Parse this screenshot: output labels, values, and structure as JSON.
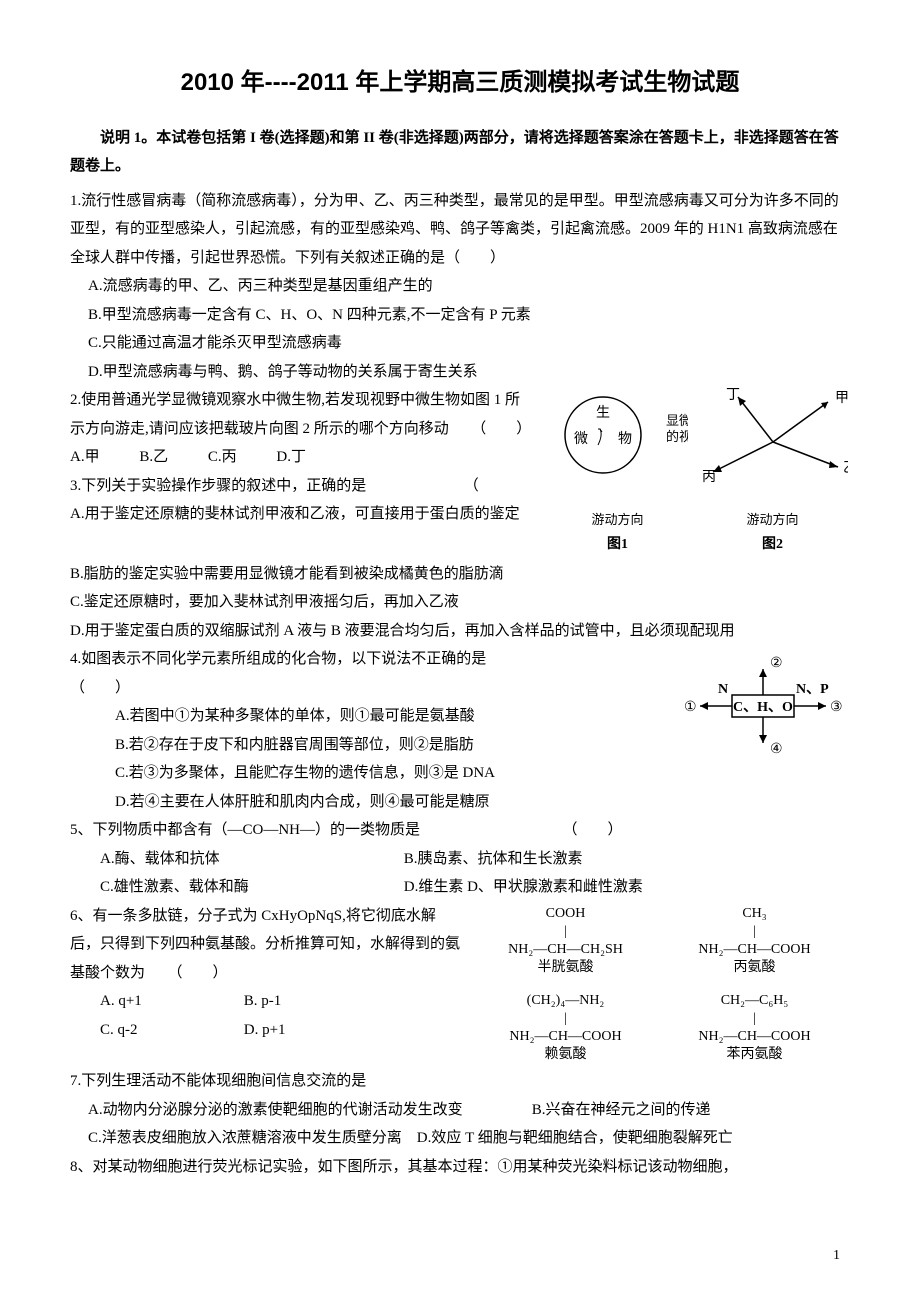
{
  "title": "2010 年----2011 年上学期高三质测模拟考试生物试题",
  "instructions": "说明 1。本试卷包括第 I 卷(选择题)和第 II 卷(非选择题)两部分，请将选择题答案涂在答题卡上，非选择题答在答题卷上。",
  "q1": {
    "stem": "1.流行性感冒病毒（简称流感病毒），分为甲、乙、丙三种类型，最常见的是甲型。甲型流感病毒又可分为许多不同的亚型，有的亚型感染人，引起流感，有的亚型感染鸡、鸭、鸽子等禽类，引起禽流感。2009 年的 H1N1 高致病流感在全球人群中传播，引起世界恐慌。下列有关叙述正确的是（　　）",
    "A": "A.流感病毒的甲、乙、丙三种类型是基因重组产生的",
    "B": "B.甲型流感病毒一定含有 C、H、O、N 四种元素,不一定含有 P 元素",
    "C": "C.只能通过高温才能杀灭甲型流感病毒",
    "D": "D.甲型流感病毒与鸭、鹅、鸽子等动物的关系属于寄生关系"
  },
  "q2": {
    "stem": "2.使用普通光学显微镜观察水中微生物,若发现视野中微生物如图 1 所示方向游走,请问应该把载玻片向图 2 所示的哪个方向移动　　（　　）",
    "A": "A.甲",
    "B": "B.乙",
    "C": "C.丙",
    "D": "D.丁",
    "fig1_chars": [
      "微",
      "生",
      "物"
    ],
    "fig1_sub": "游动方向",
    "fig1_cap": "图1",
    "fig1_side": "显微镜的视野",
    "fig2_labels": [
      "甲",
      "乙",
      "丙",
      "丁"
    ],
    "fig2_sub": "游动方向",
    "fig2_cap": "图2"
  },
  "q3": {
    "stem": "3.下列关于实验操作步骤的叙述中，正确的是　　　　　　　（",
    "A": "A.用于鉴定还原糖的斐林试剂甲液和乙液，可直接用于蛋白质的鉴定",
    "B": "B.脂肪的鉴定实验中需要用显微镜才能看到被染成橘黄色的脂肪滴",
    "C": "C.鉴定还原糖时，要加入斐林试剂甲液摇匀后，再加入乙液",
    "D": "D.用于鉴定蛋白质的双缩脲试剂 A 液与 B 液要混合均匀后，再加入含样品的试管中，且必须现配现用"
  },
  "q4": {
    "stem": "4.如图表示不同化学元素所组成的化合物，以下说法不正确的是　　　　　　　　　（　　）",
    "A": "A.若图中①为某种多聚体的单体，则①最可能是氨基酸",
    "B": "B.若②存在于皮下和内脏器官周围等部位，则②是脂肪",
    "C": "C.若③为多聚体，且能贮存生物的遗传信息，则③是 DNA",
    "D": "D.若④主要在人体肝脏和肌肉内合成，则④最可能是糖原",
    "diag": {
      "center": "C、H、O",
      "left": "N",
      "top": "②",
      "right": "N、P",
      "circ1": "①",
      "circ3": "③",
      "circ4": "④"
    }
  },
  "q5": {
    "stem": "5、下列物质中都含有（—CO—NH—）的一类物质是　　　　　　　　　　（　　）",
    "A": "A.酶、载体和抗体",
    "B": "B.胰岛素、抗体和生长激素",
    "C": "C.雄性激素、载体和酶",
    "D": "D.维生素 D、甲状腺激素和雌性激素"
  },
  "q6": {
    "stem": "6、有一条多肽链，分子式为 CxHyOpNqS,将它彻底水解后，只得到下列四种氨基酸。分析推算可知，水解得到的氨基酸个数为　　（　　）",
    "A": "A. q+1",
    "B": "B. p-1",
    "C": "C. q-2",
    "D": "D. p+1",
    "aa": {
      "a1": {
        "name": "半胱氨酸",
        "top": "COOH",
        "main_l": "NH₂—",
        "main_m": "CH—CH₂SH"
      },
      "a2": {
        "name": "丙氨酸",
        "top": "CH₃",
        "main_l": "NH₂—",
        "main_m": "CH—COOH"
      },
      "a3": {
        "name": "赖氨酸",
        "top": "(CH₂)₄—NH₂",
        "main_l": "NH₂—",
        "main_m": "CH—COOH"
      },
      "a4": {
        "name": "苯丙氨酸",
        "top": "CH₂—C₆H₅",
        "main_l": "NH₂—",
        "main_m": "CH—COOH"
      }
    }
  },
  "q7": {
    "stem": "7.下列生理活动不能体现细胞间信息交流的是",
    "A": "A.动物内分泌腺分泌的激素使靶细胞的代谢活动发生改变",
    "B": "B.兴奋在神经元之间的传递",
    "C": "C.洋葱表皮细胞放入浓蔗糖溶液中发生质壁分离",
    "D": "D.效应 T 细胞与靶细胞结合，使靶细胞裂解死亡"
  },
  "q8": {
    "stem": "8、对某动物细胞进行荧光标记实验，如下图所示，其基本过程：①用某种荧光染料标记该动物细胞，"
  },
  "pageno": "1"
}
